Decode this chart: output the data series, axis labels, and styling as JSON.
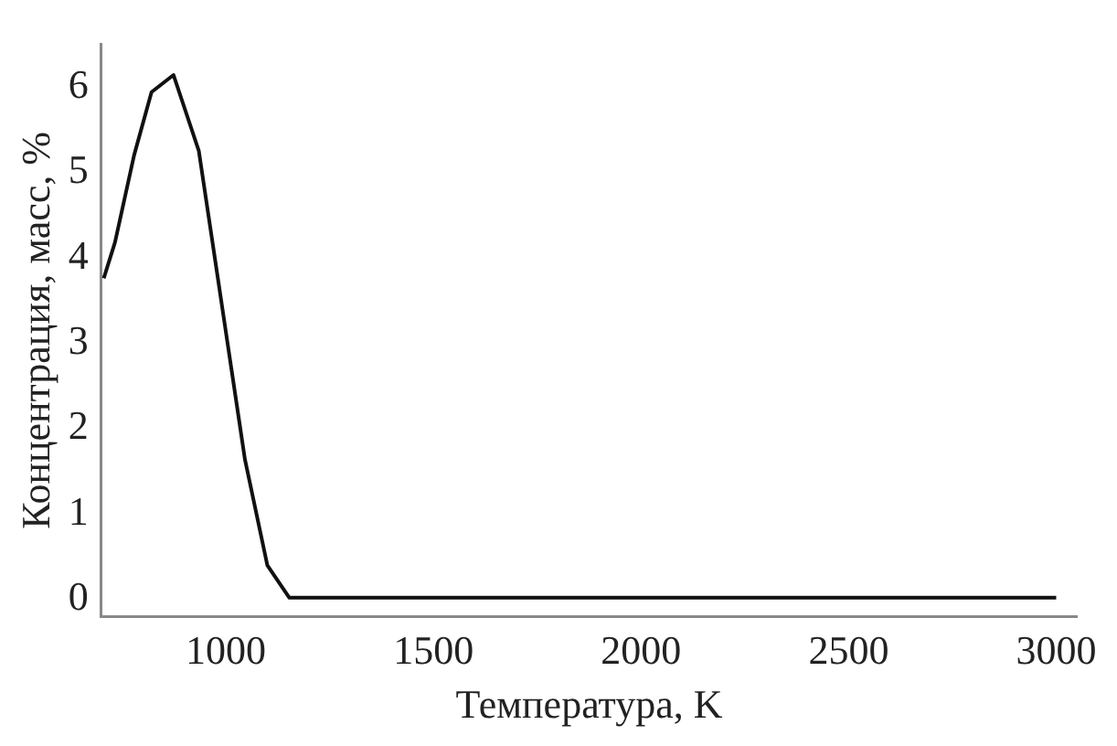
{
  "chart_data": {
    "type": "line",
    "xlabel": "Температура, K",
    "ylabel": "Концентрация, масс, %",
    "x": [
      706,
      733,
      779,
      821,
      874,
      935,
      1046,
      1100,
      1153,
      3000
    ],
    "series": [
      {
        "color": "#111111",
        "values": [
          3.76,
          4.18,
          5.2,
          5.94,
          6.14,
          5.25,
          1.64,
          0.4,
          0.02,
          0.02
        ]
      }
    ],
    "xlim": [
      700,
      3050
    ],
    "xticks": [
      1000,
      1500,
      2000,
      2500,
      3000
    ],
    "ylim": [
      -0.2,
      6.5
    ],
    "yticks": [
      0,
      1,
      2,
      3,
      4,
      5,
      6
    ],
    "grid": false,
    "legend": false,
    "marker": "none",
    "line_style": "solid"
  }
}
